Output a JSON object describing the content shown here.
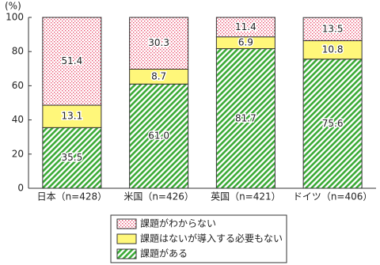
{
  "chart_data": {
    "type": "stacked_bar",
    "y_unit_label": "(%)",
    "categories": [
      "日本（n=428）",
      "米国（n=426）",
      "英国（n=421）",
      "ドイツ（n=406）"
    ],
    "series": [
      {
        "name": "課題がある",
        "color": "#3aaa35",
        "pattern": "hatch",
        "values": [
          35.5,
          61.0,
          81.7,
          75.6
        ],
        "value_labels": [
          "35.5",
          "61.0",
          "81.7",
          "75.6"
        ]
      },
      {
        "name": "課題はないが導入する必要もない",
        "color": "#fff77a",
        "pattern": "solid",
        "values": [
          13.1,
          8.7,
          6.9,
          10.8
        ]
      },
      {
        "name": "課題がわからない",
        "color": "#e8506e",
        "pattern": "dots",
        "values": [
          51.4,
          30.3,
          11.4,
          13.5
        ]
      }
    ],
    "ylim": [
      0,
      100
    ],
    "yticks": [
      0,
      20,
      40,
      60,
      80,
      100
    ],
    "legend": "bottom"
  }
}
